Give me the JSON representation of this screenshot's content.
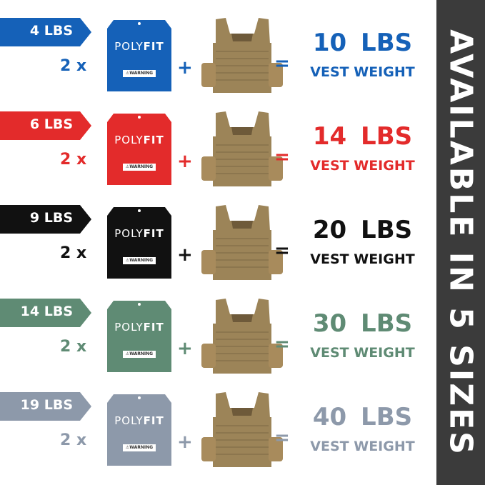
{
  "brand": {
    "name_light": "POLY",
    "name_bold": "FIT",
    "warning": "⚠WARNING"
  },
  "vest_color": "#9c8458",
  "sidebar": {
    "text": "AVAILABLE IN 5 SIZES",
    "color": "#3b3b3b"
  },
  "rows": [
    {
      "plate_weight": "4 LBS",
      "multiplier": "2 x",
      "plus": "+",
      "equals": "=",
      "total": "10 LBS",
      "caption": "VEST WEIGHT",
      "color": "#1561b8"
    },
    {
      "plate_weight": "6 LBS",
      "multiplier": "2 x",
      "plus": "+",
      "equals": "=",
      "total": "14 LBS",
      "caption": "VEST WEIGHT",
      "color": "#e32b2b"
    },
    {
      "plate_weight": "9 LBS",
      "multiplier": "2 x",
      "plus": "+",
      "equals": "=",
      "total": "20 LBS",
      "caption": "VEST WEIGHT",
      "color": "#111111"
    },
    {
      "plate_weight": "14 LBS",
      "multiplier": "2 x",
      "plus": "+",
      "equals": "=",
      "total": "30 LBS",
      "caption": "VEST WEIGHT",
      "color": "#5f8b74"
    },
    {
      "plate_weight": "19 LBS",
      "multiplier": "2 x",
      "plus": "+",
      "equals": "=",
      "total": "40 LBS",
      "caption": "VEST WEIGHT",
      "color": "#8d99aa"
    }
  ]
}
